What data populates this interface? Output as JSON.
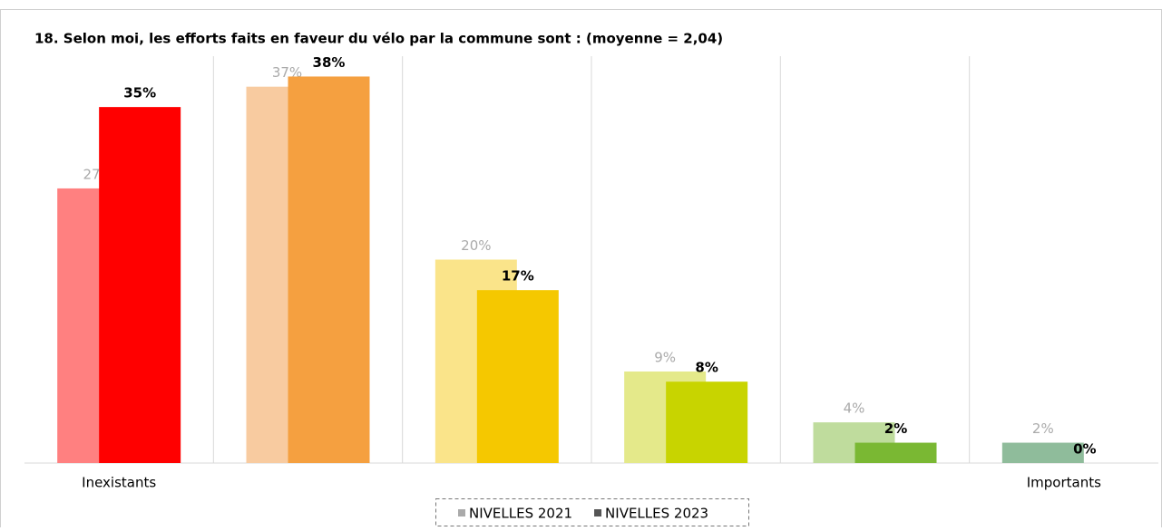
{
  "chart_data": {
    "type": "bar",
    "title": "18.  Selon moi, les efforts faits en faveur du vélo par la commune sont : (moyenne = 2,04)",
    "categories": [
      "Inexistants",
      null,
      null,
      null,
      null,
      "Importants"
    ],
    "series": [
      {
        "name": "NIVELLES 2021",
        "color": "#aaaaaa",
        "colors": [
          "#ff8080",
          "#f8cba0",
          "#fae48a",
          "#e4e98a",
          "#bfdc9d",
          "#8fbc9b"
        ],
        "values": [
          27,
          37,
          20,
          9,
          4,
          2
        ],
        "value_labels": [
          "27%",
          "37%",
          "20%",
          "9%",
          "4%",
          "2%"
        ]
      },
      {
        "name": "NIVELLES 2023",
        "color": "#555555",
        "colors": [
          "#ff0000",
          "#f5a040",
          "#f5c800",
          "#c8d400",
          "#7ab833",
          "#2e8b57"
        ],
        "values": [
          35,
          38,
          17,
          8,
          2,
          0
        ],
        "value_labels": [
          "35%",
          "38%",
          "17%",
          "8%",
          "2%",
          "0%"
        ]
      }
    ],
    "ylim": [
      0,
      40
    ],
    "legend": "bottom"
  }
}
